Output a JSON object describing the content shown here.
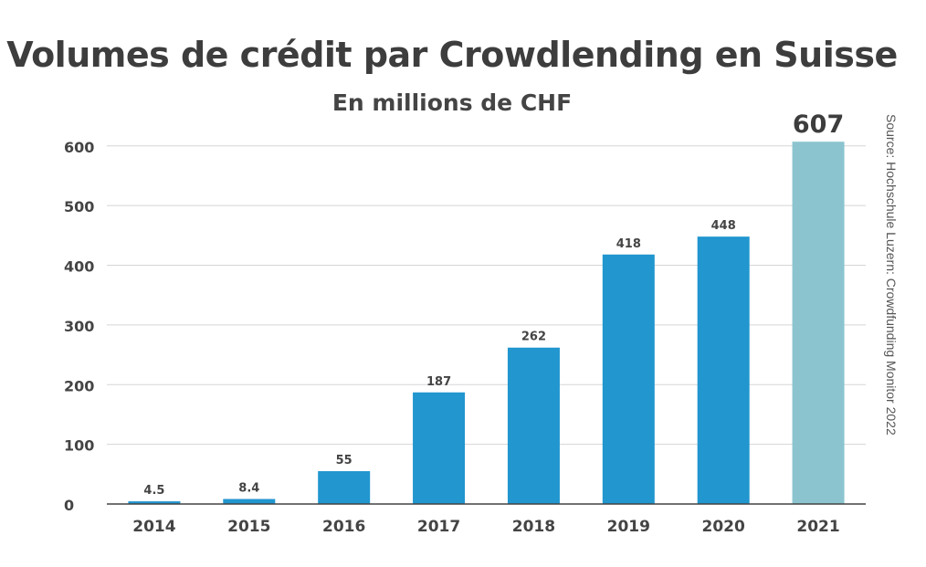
{
  "chart_data": {
    "type": "bar",
    "title": "Volumes de crédit par Crowdlending en Suisse",
    "subtitle": "En millions de CHF",
    "source": "Source: Hochschule Luzern: Crowdfunding Monitor 2022",
    "categories": [
      "2014",
      "2015",
      "2016",
      "2017",
      "2018",
      "2019",
      "2020",
      "2021"
    ],
    "values": [
      4.5,
      8.4,
      55,
      187,
      262,
      418,
      448,
      607
    ],
    "value_labels": [
      "4.5",
      "8.4",
      "55",
      "187",
      "262",
      "418",
      "448",
      "607"
    ],
    "yticks": [
      0,
      100,
      200,
      300,
      400,
      500,
      600
    ],
    "ylim": [
      0,
      640
    ],
    "grid": true,
    "bar_color": "#2196cf",
    "highlight_color": "#8bc4cf",
    "highlight_index": 7
  }
}
